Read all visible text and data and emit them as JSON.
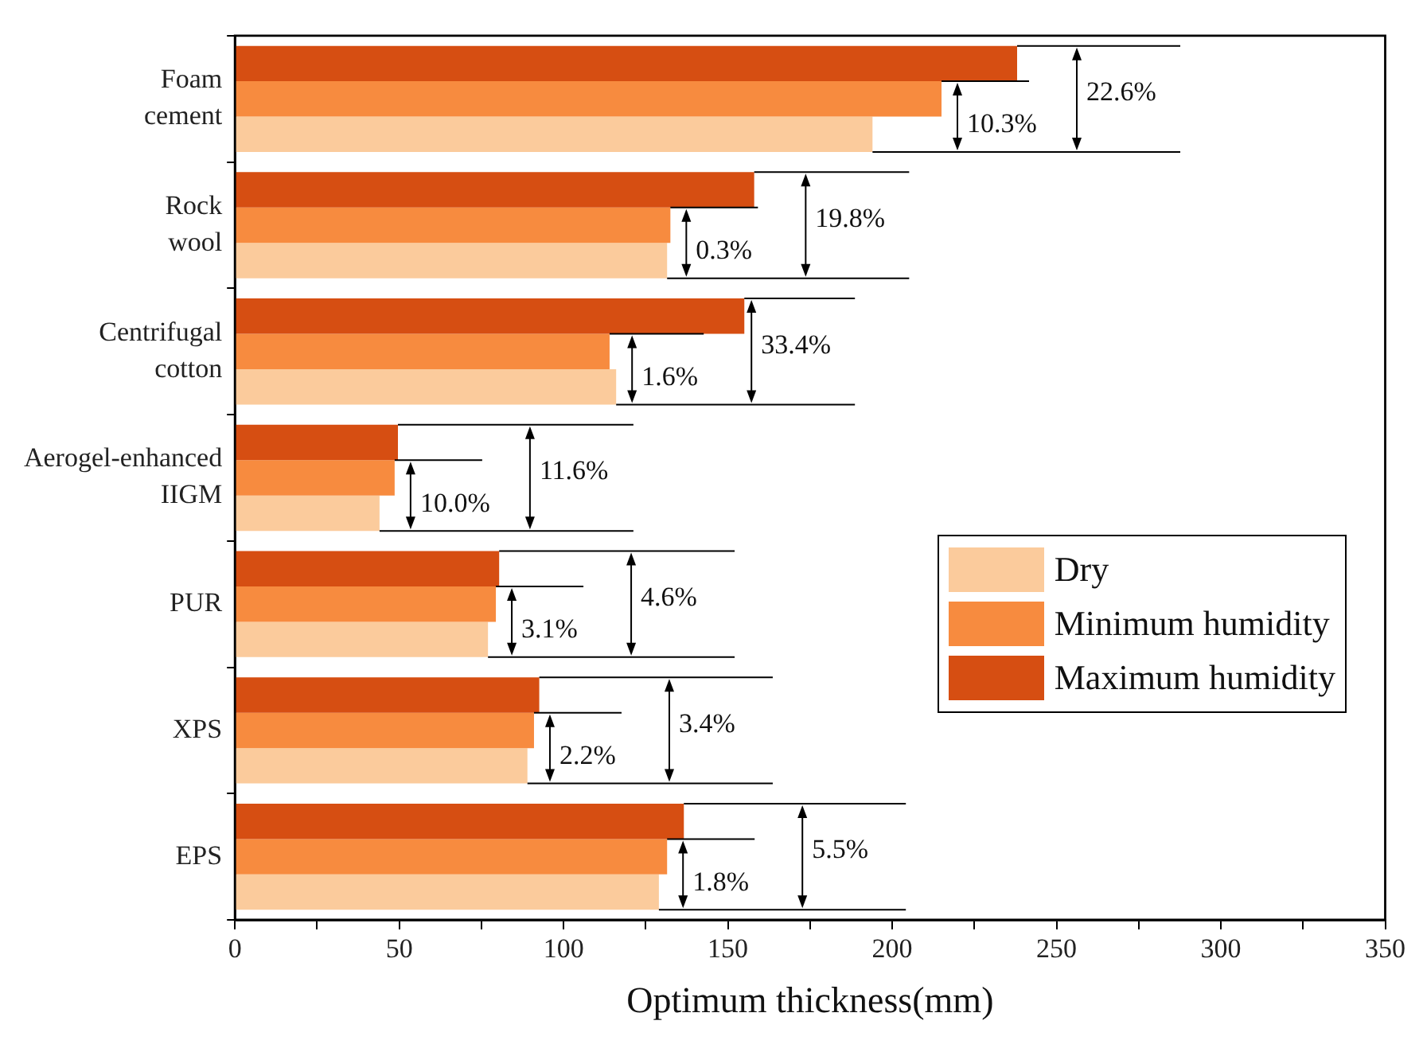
{
  "chart_data": {
    "type": "bar",
    "orientation": "horizontal",
    "xlabel": "Optimum thickness(mm)",
    "categories": [
      "Foam\ncement",
      "Rock\nwool",
      "Centrifugal\ncotton",
      "Aerogel-enhanced\nIIGM",
      "PUR",
      "XPS",
      "EPS"
    ],
    "series": [
      {
        "name": "Dry",
        "color": "#fbcb9c",
        "values": [
          194,
          131.5,
          116,
          44,
          77,
          89,
          129
        ]
      },
      {
        "name": "Minimum humidity",
        "color": "#f78b3f",
        "values": [
          215,
          132.5,
          114,
          48.6,
          79.4,
          91,
          131.5
        ]
      },
      {
        "name": "Maximum humidity",
        "color": "#d64e12",
        "values": [
          238,
          158,
          155,
          49.6,
          80.4,
          92.6,
          136.6
        ]
      }
    ],
    "xlim": [
      0,
      350
    ],
    "xticks": [
      0,
      {
        "value": 25,
        "label": null
      },
      50,
      {
        "value": 75,
        "label": null
      },
      100,
      {
        "value": 125,
        "label": null
      },
      150,
      {
        "value": 175,
        "label": null
      },
      200,
      {
        "value": 225,
        "label": null
      },
      250,
      {
        "value": 275,
        "label": null
      },
      300,
      {
        "value": 325,
        "label": null
      },
      350
    ],
    "grid": false,
    "legend": "right",
    "annotations": [
      {
        "text": "10.3%",
        "x": 215,
        "y": "Foam\ncement"
      },
      "22.6%",
      {
        "text": "0.3%",
        "x": 132.5,
        "y": "Rock\nwool"
      },
      "19.8%",
      {
        "text": "1.6%",
        "x": 114,
        "y": "Centrifugal\ncotton"
      },
      "33.4%",
      {
        "text": "10.0%",
        "x": 48.6,
        "y": "Aerogel-enhanced\nIIGM"
      },
      "11.6%",
      {
        "text": "3.1%",
        "x": 79.4,
        "y": "PUR"
      },
      "4.6%",
      {
        "text": "2.2%",
        "x": 91,
        "y": "XPS"
      },
      "3.4%",
      {
        "text": "1.8%",
        "x": 131.5,
        "y": "EPS"
      },
      "5.5%"
    ]
  }
}
